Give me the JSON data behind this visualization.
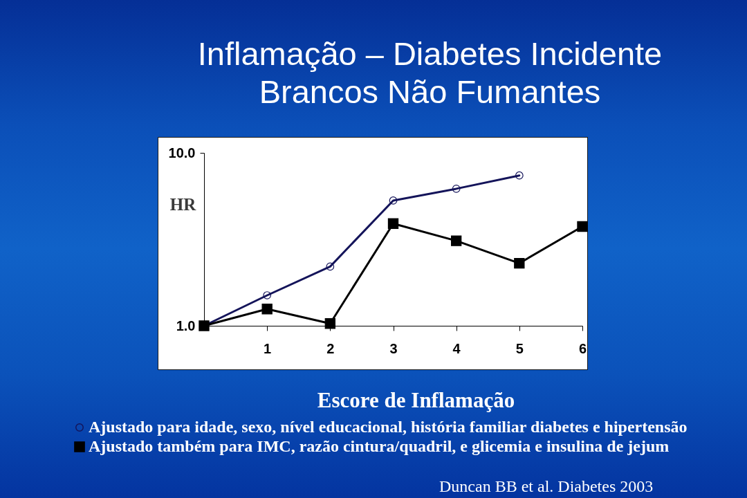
{
  "chart_data": {
    "type": "line",
    "title": "Inflamação – Diabetes Incidente",
    "subtitle": "Brancos Não Fumantes",
    "xlabel": "Escore de Inflamação",
    "ylabel": "HR",
    "x": [
      0,
      1,
      2,
      3,
      4,
      5,
      6
    ],
    "series": [
      {
        "name": "Ajustado para idade, sexo, nível educacional, história familiar diabetes e hipertensão",
        "color": "#14145a",
        "marker": "circle",
        "values": [
          1.0,
          1.5,
          2.2,
          5.3,
          6.2,
          7.4,
          null
        ]
      },
      {
        "name": "Ajustado também para IMC, razão cintura/quadril, e glicemia e insulina de jejum",
        "color": "#000000",
        "marker": "square",
        "values": [
          1.0,
          1.25,
          1.03,
          3.9,
          3.1,
          2.3,
          3.75
        ]
      }
    ],
    "xlim": [
      0,
      6
    ],
    "xticks": [
      1,
      2,
      3,
      4,
      5,
      6
    ],
    "ylim": [
      1,
      10
    ],
    "yticks": [
      {
        "value": 1,
        "label": "1.0"
      },
      {
        "value": 10,
        "label": "10.0"
      }
    ],
    "log": true,
    "grid": false,
    "legend": "bottom",
    "line_style": "solid",
    "annotations": [
      "Duncan BB et al. Diabetes 2003"
    ]
  }
}
